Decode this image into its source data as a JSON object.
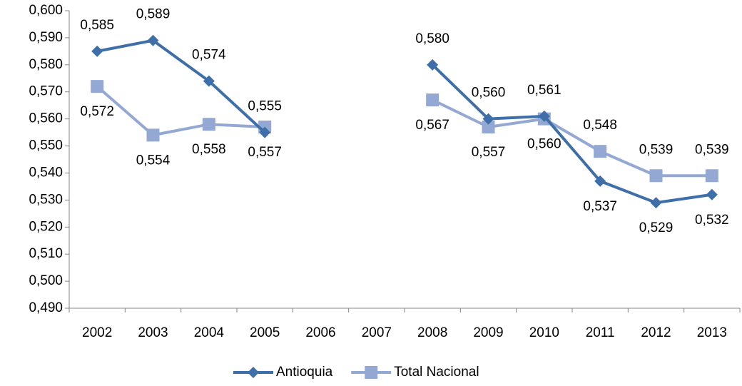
{
  "chart_data": {
    "type": "line",
    "categories": [
      "2002",
      "2003",
      "2004",
      "2005",
      "2006",
      "2007",
      "2008",
      "2009",
      "2010",
      "2011",
      "2012",
      "2013"
    ],
    "series": [
      {
        "name": "Antioquia",
        "color": "#3e6fa8",
        "marker": "diamond",
        "values": [
          0.585,
          0.589,
          0.574,
          0.555,
          null,
          null,
          0.58,
          0.56,
          0.561,
          0.537,
          0.529,
          0.532
        ],
        "value_labels": [
          "0,585",
          "0,589",
          "0,574",
          "0,555",
          null,
          null,
          "0,580",
          "0,560",
          "0,561",
          "0,537",
          "0,529",
          "0,532"
        ]
      },
      {
        "name": "Total Nacional",
        "color": "#93a9d4",
        "marker": "square",
        "values": [
          0.572,
          0.554,
          0.558,
          0.557,
          null,
          null,
          0.567,
          0.557,
          0.56,
          0.548,
          0.539,
          0.539
        ],
        "value_labels": [
          "0,572",
          "0,554",
          "0,558",
          "0,557",
          null,
          null,
          "0,567",
          "0,557",
          "0,560",
          "0,548",
          "0,539",
          "0,539"
        ]
      }
    ],
    "ylim": [
      0.49,
      0.6
    ],
    "yticks": [
      {
        "value": 0.49,
        "label": "0,490"
      },
      {
        "value": 0.5,
        "label": "0,500"
      },
      {
        "value": 0.51,
        "label": "0,510"
      },
      {
        "value": 0.52,
        "label": "0,520"
      },
      {
        "value": 0.53,
        "label": "0,530"
      },
      {
        "value": 0.54,
        "label": "0,540"
      },
      {
        "value": 0.55,
        "label": "0,550"
      },
      {
        "value": 0.56,
        "label": "0,560"
      },
      {
        "value": 0.57,
        "label": "0,570"
      },
      {
        "value": 0.58,
        "label": "0,580"
      },
      {
        "value": 0.59,
        "label": "0,590"
      },
      {
        "value": 0.6,
        "label": "0,600"
      }
    ],
    "grid": false,
    "legend": "bottom"
  }
}
